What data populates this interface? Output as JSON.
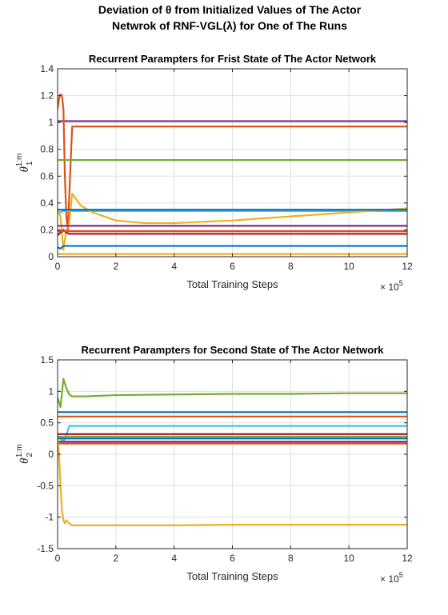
{
  "figure": {
    "title_line1": "Deviation of θ from Initialized Values of The Actor",
    "title_line2": "Netwrok of RNF-VGL(λ) for One of The Runs"
  },
  "chart_data": [
    {
      "type": "line",
      "title": "Recurrent Parampters for Frist State of The Actor Network",
      "xlabel": "Total Training Steps",
      "ylabel": "θ",
      "ylabel_sub": "1",
      "ylabel_sup": "1:m",
      "x_multiplier": "× 10",
      "x_multiplier_exp": "5",
      "xlim": [
        0,
        12
      ],
      "ylim": [
        0,
        1.4
      ],
      "xticks": [
        0,
        2,
        4,
        6,
        8,
        10,
        12
      ],
      "yticks": [
        "0",
        "0.2",
        "0.4",
        "0.6",
        "0.8",
        "1",
        "1.2",
        "1.4"
      ],
      "grid": true,
      "series": [
        {
          "color": "#7E2F8E",
          "x": [
            0,
            0.1,
            12
          ],
          "y": [
            1.01,
            1.01,
            1.01
          ]
        },
        {
          "color": "#D95319",
          "x": [
            0,
            0.05,
            0.1,
            0.15,
            0.2,
            0.25,
            0.3,
            0.35,
            0.5,
            12
          ],
          "y": [
            1.1,
            1.18,
            1.21,
            1.2,
            1.1,
            0.6,
            0.3,
            0.2,
            0.97,
            0.97
          ]
        },
        {
          "color": "#77AC30",
          "x": [
            0,
            12
          ],
          "y": [
            0.72,
            0.72
          ]
        },
        {
          "color": "#4DBEEE",
          "x": [
            0,
            0.1,
            0.2,
            12
          ],
          "y": [
            0.33,
            0.33,
            0.34,
            0.34
          ]
        },
        {
          "color": "#EDB120",
          "x": [
            0,
            0.1,
            0.2,
            0.3,
            0.4,
            0.5,
            0.8,
            1.2,
            1.6,
            2,
            3,
            4,
            6,
            8,
            10,
            12
          ],
          "y": [
            0.36,
            0.3,
            0.05,
            0.2,
            0.25,
            0.47,
            0.38,
            0.33,
            0.3,
            0.27,
            0.25,
            0.25,
            0.27,
            0.3,
            0.33,
            0.36
          ]
        },
        {
          "color": "#0072BD",
          "x": [
            0,
            0.3,
            0.45,
            12
          ],
          "y": [
            0.35,
            0.35,
            0.35,
            0.35
          ]
        },
        {
          "color": "#7E2F8E",
          "x": [
            0,
            12
          ],
          "y": [
            0.23,
            0.23
          ]
        },
        {
          "color": "#A2142F",
          "x": [
            0,
            0.2,
            0.3,
            0.4,
            12
          ],
          "y": [
            0.16,
            0.2,
            0.18,
            0.17,
            0.17
          ]
        },
        {
          "color": "#D95319",
          "x": [
            0,
            12
          ],
          "y": [
            0.19,
            0.19
          ]
        },
        {
          "color": "#0072BD",
          "x": [
            0,
            0.1,
            0.2,
            12
          ],
          "y": [
            0.07,
            0.06,
            0.08,
            0.08
          ]
        },
        {
          "color": "#EDB120",
          "x": [
            0,
            12
          ],
          "y": [
            0.02,
            0.02
          ]
        }
      ]
    },
    {
      "type": "line",
      "title": "Recurrent Parampters for Second State of The Actor Network",
      "xlabel": "Total Training Steps",
      "ylabel": "θ",
      "ylabel_sub": "2",
      "ylabel_sup": "1:m",
      "x_multiplier": "× 10",
      "x_multiplier_exp": "5",
      "xlim": [
        0,
        12
      ],
      "ylim": [
        -1.5,
        1.5
      ],
      "xticks": [
        0,
        2,
        4,
        6,
        8,
        10,
        12
      ],
      "yticks": [
        "-1.5",
        "-1",
        "-0.5",
        "0",
        "0.5",
        "1",
        "1.5"
      ],
      "grid": true,
      "series": [
        {
          "color": "#77AC30",
          "x": [
            0,
            0.1,
            0.2,
            0.3,
            0.4,
            0.5,
            1,
            2,
            4,
            6,
            8,
            10,
            12
          ],
          "y": [
            0.9,
            0.75,
            1.2,
            1.05,
            0.95,
            0.92,
            0.92,
            0.94,
            0.95,
            0.96,
            0.96,
            0.97,
            0.97
          ]
        },
        {
          "color": "#0072BD",
          "x": [
            0,
            12
          ],
          "y": [
            0.67,
            0.67
          ]
        },
        {
          "color": "#D95319",
          "x": [
            0,
            12
          ],
          "y": [
            0.6,
            0.6
          ]
        },
        {
          "color": "#4DBEEE",
          "x": [
            0,
            0.2,
            0.3,
            0.4,
            0.5,
            12
          ],
          "y": [
            0.3,
            0.2,
            0.3,
            0.45,
            0.45,
            0.45
          ]
        },
        {
          "color": "#A2142F",
          "x": [
            0,
            12
          ],
          "y": [
            0.32,
            0.32
          ]
        },
        {
          "color": "#77AC30",
          "x": [
            0,
            12
          ],
          "y": [
            0.28,
            0.28
          ]
        },
        {
          "color": "#0072BD",
          "x": [
            0,
            12
          ],
          "y": [
            0.25,
            0.25
          ]
        },
        {
          "color": "#7E2F8E",
          "x": [
            0,
            12
          ],
          "y": [
            0.2,
            0.2
          ]
        },
        {
          "color": "#D95319",
          "x": [
            0,
            12
          ],
          "y": [
            0.17,
            0.17
          ]
        },
        {
          "color": "#EDB120",
          "x": [
            0,
            0.05,
            0.1,
            0.15,
            0.2,
            0.25,
            0.3,
            0.4,
            0.5,
            1,
            2,
            4,
            6,
            8,
            10,
            12
          ],
          "y": [
            0.25,
            0.0,
            -0.5,
            -0.9,
            -1.05,
            -1.1,
            -1.05,
            -1.1,
            -1.13,
            -1.13,
            -1.13,
            -1.13,
            -1.12,
            -1.12,
            -1.12,
            -1.12
          ]
        }
      ]
    }
  ]
}
